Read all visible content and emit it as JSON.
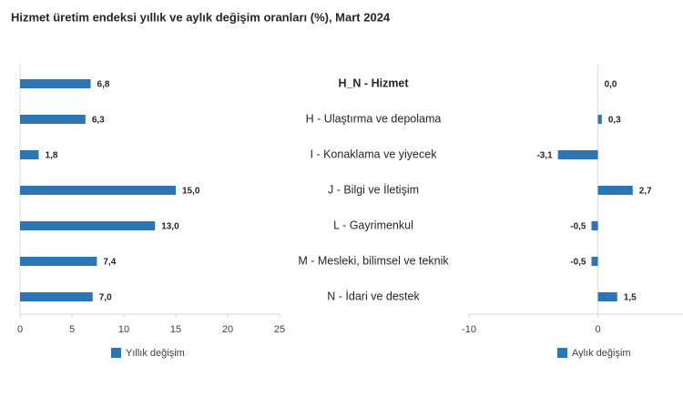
{
  "title": "Hizmet üretim endeksi yıllık ve aylık değişim oranları (%), Mart 2024",
  "chart_data": [
    {
      "type": "bar",
      "orientation": "horizontal",
      "categories": [
        "H_N - Hizmet",
        "H - Ulaştırma ve depolama",
        "I - Konaklama ve yiyecek",
        "J - Bilgi ve İletişim",
        "L - Gayrimenkul",
        "M - Mesleki, bilimsel ve teknik",
        "N - İdari ve destek"
      ],
      "series": [
        {
          "name": "Yıllık değişim",
          "color": "#2e75b6",
          "values": [
            6.8,
            6.3,
            1.8,
            15.0,
            13.0,
            7.4,
            7.0
          ],
          "value_labels": [
            "6,8",
            "6,3",
            "1,8",
            "15,0",
            "13,0",
            "7,4",
            "7,0"
          ]
        }
      ],
      "xlim": [
        0,
        25
      ],
      "xticks": [
        0,
        5,
        10,
        15,
        20,
        25
      ]
    },
    {
      "type": "bar",
      "orientation": "horizontal",
      "series": [
        {
          "name": "Aylık değişim",
          "color": "#2e75b6",
          "values": [
            0.0,
            0.3,
            -3.1,
            2.7,
            -0.5,
            -0.5,
            1.5
          ],
          "value_labels": [
            "0,0",
            "0,3",
            "-3,1",
            "2,7",
            "-0,5",
            "-0,5",
            "1,5"
          ]
        }
      ],
      "xlim": [
        -10,
        6.6
      ],
      "xticks": [
        -10,
        0
      ]
    }
  ]
}
